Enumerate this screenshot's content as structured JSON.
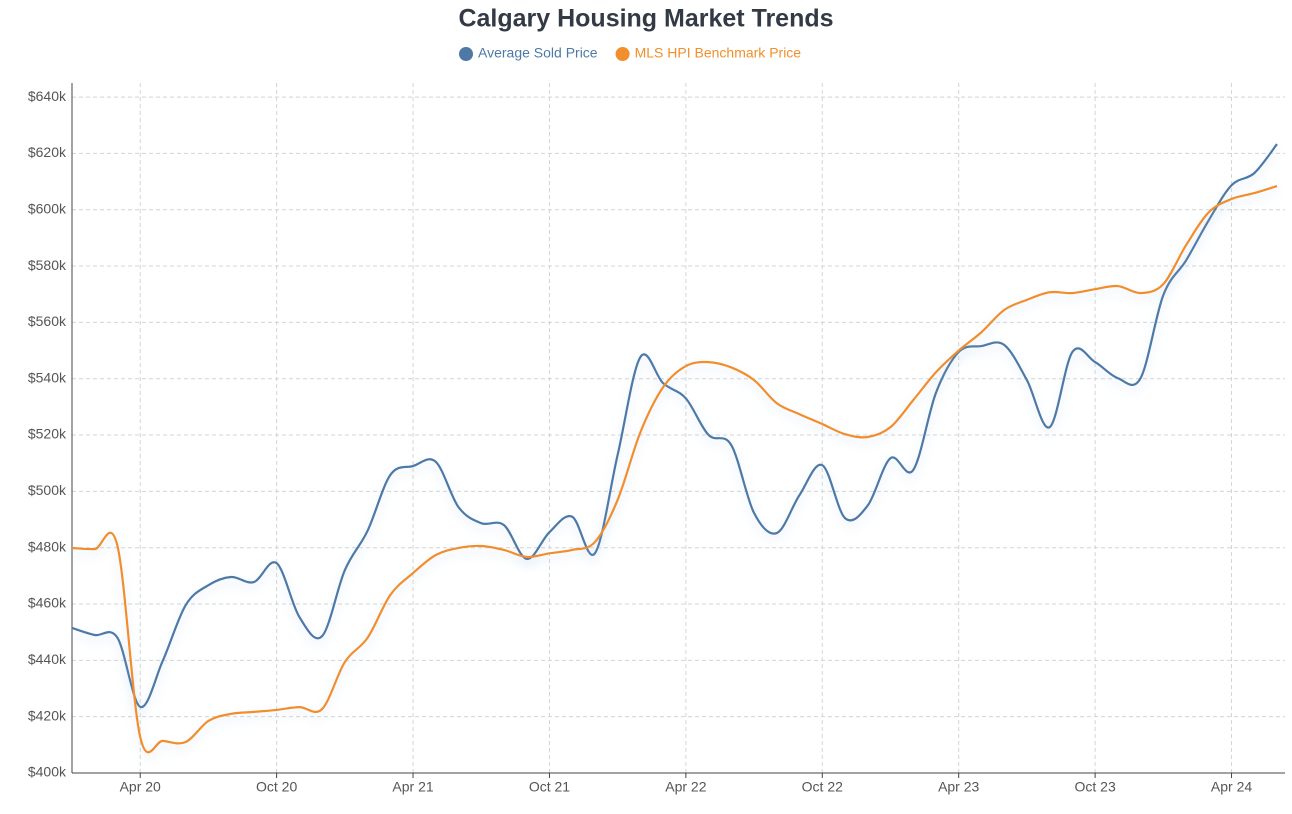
{
  "chart_data": {
    "type": "line",
    "title": "Calgary Housing Market Trends",
    "x": [
      "2020-01",
      "2020-02",
      "2020-03",
      "2020-04",
      "2020-05",
      "2020-06",
      "2020-07",
      "2020-08",
      "2020-09",
      "2020-10",
      "2020-11",
      "2020-12",
      "2021-01",
      "2021-02",
      "2021-03",
      "2021-04",
      "2021-05",
      "2021-06",
      "2021-07",
      "2021-08",
      "2021-09",
      "2021-10",
      "2021-11",
      "2021-12",
      "2022-01",
      "2022-02",
      "2022-03",
      "2022-04",
      "2022-05",
      "2022-06",
      "2022-07",
      "2022-08",
      "2022-09",
      "2022-10",
      "2022-11",
      "2022-12",
      "2023-01",
      "2023-02",
      "2023-03",
      "2023-04",
      "2023-05",
      "2023-06",
      "2023-07",
      "2023-08",
      "2023-09",
      "2023-10",
      "2023-11",
      "2023-12",
      "2024-01",
      "2024-02",
      "2024-03",
      "2024-04",
      "2024-05",
      "2024-06"
    ],
    "series": [
      {
        "name": "Average Sold Price",
        "color": "#4e79a7",
        "values": [
          451500,
          449000,
          448000,
          423500,
          440000,
          459600,
          466700,
          469600,
          467800,
          474500,
          455400,
          448600,
          472000,
          486000,
          505800,
          509000,
          510500,
          494400,
          488700,
          488000,
          476000,
          485500,
          491000,
          478000,
          513000,
          547700,
          538400,
          533000,
          520000,
          516400,
          492300,
          485200,
          498700,
          509300,
          490500,
          495000,
          511800,
          507600,
          535000,
          549500,
          551600,
          552000,
          539500,
          522800,
          549500,
          545900,
          540200,
          540200,
          569700,
          582000,
          596300,
          608700,
          613000,
          623300
        ]
      },
      {
        "name": "MLS HPI Benchmark Price",
        "color": "#f28e2b",
        "values": [
          479900,
          479500,
          480600,
          412800,
          411400,
          411000,
          418500,
          421000,
          421700,
          422400,
          423400,
          422700,
          439400,
          448000,
          463200,
          471000,
          477400,
          479900,
          480600,
          479200,
          476700,
          478000,
          479200,
          482000,
          497000,
          521000,
          537000,
          544500,
          545900,
          544000,
          539500,
          531300,
          527400,
          523900,
          520300,
          519300,
          522800,
          532400,
          542300,
          550000,
          556500,
          564400,
          568000,
          570700,
          570400,
          571800,
          572900,
          570400,
          573600,
          587400,
          599100,
          603800,
          605900,
          608400
        ]
      }
    ],
    "xlim": [
      "2020-01",
      "2024-06"
    ],
    "xticks": [
      {
        "value": "2020-04",
        "label": "Apr 20"
      },
      {
        "value": "2020-10",
        "label": "Oct 20"
      },
      {
        "value": "2021-04",
        "label": "Apr 21"
      },
      {
        "value": "2021-10",
        "label": "Oct 21"
      },
      {
        "value": "2022-04",
        "label": "Apr 22"
      },
      {
        "value": "2022-10",
        "label": "Oct 22"
      },
      {
        "value": "2023-04",
        "label": "Apr 23"
      },
      {
        "value": "2023-10",
        "label": "Oct 23"
      },
      {
        "value": "2024-04",
        "label": "Apr 24"
      }
    ],
    "ylim": [
      400000,
      645000
    ],
    "yticks": [
      {
        "value": 400000,
        "label": "$400k"
      },
      {
        "value": 420000,
        "label": "$420k"
      },
      {
        "value": 440000,
        "label": "$440k"
      },
      {
        "value": 460000,
        "label": "$460k"
      },
      {
        "value": 480000,
        "label": "$480k"
      },
      {
        "value": 500000,
        "label": "$500k"
      },
      {
        "value": 520000,
        "label": "$520k"
      },
      {
        "value": 540000,
        "label": "$540k"
      },
      {
        "value": 560000,
        "label": "$560k"
      },
      {
        "value": 580000,
        "label": "$580k"
      },
      {
        "value": 600000,
        "label": "$600k"
      },
      {
        "value": 620000,
        "label": "$620k"
      },
      {
        "value": 640000,
        "label": "$640k"
      }
    ],
    "grid": true,
    "legend": "top"
  }
}
